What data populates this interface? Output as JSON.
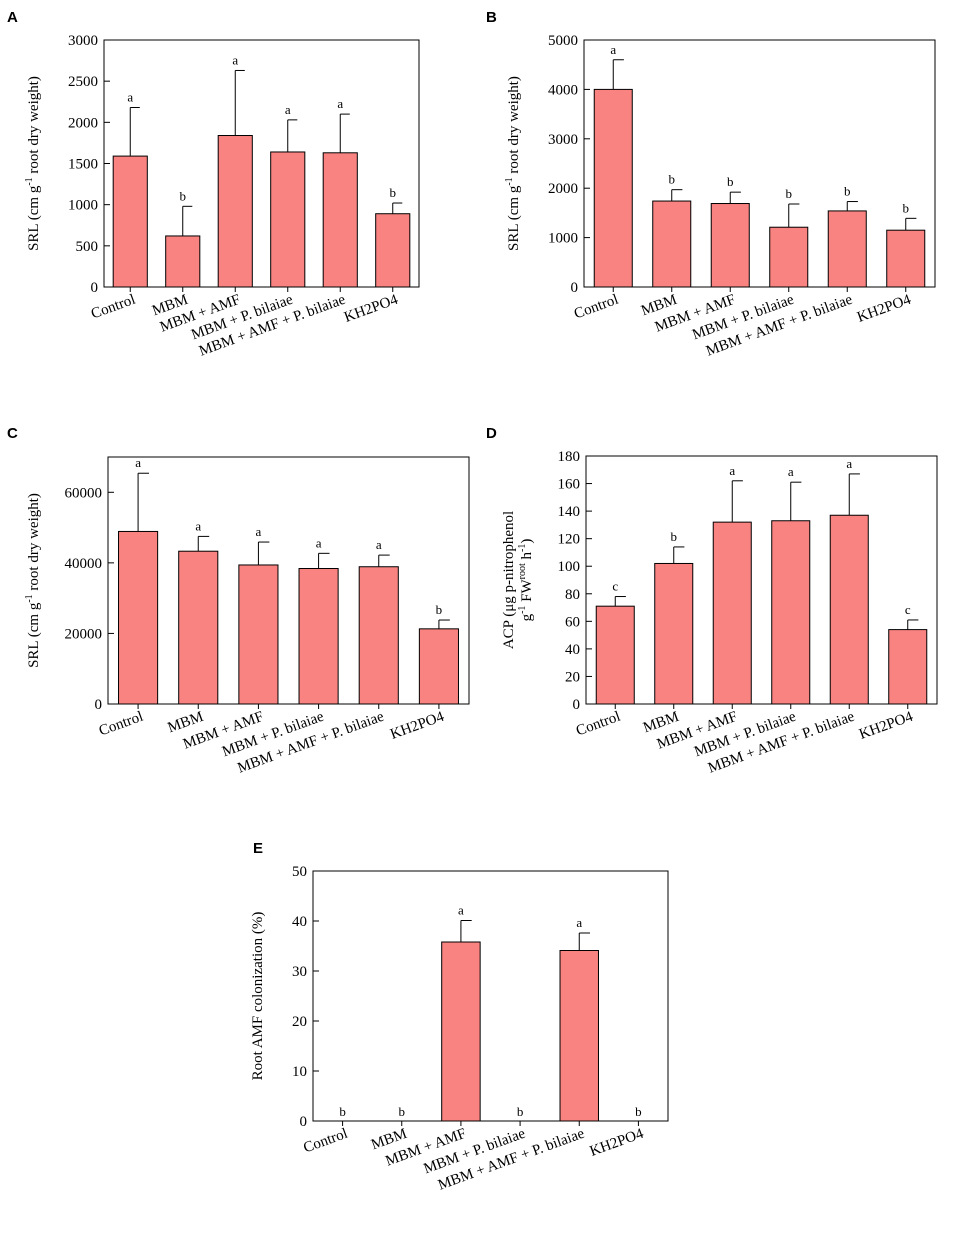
{
  "colors": {
    "bar": "#f88380",
    "axis": "#000000"
  },
  "chart_data": [
    {
      "panel": "A",
      "type": "bar",
      "categories": [
        "Control",
        "MBM",
        "MBM + AMF",
        "MBM + P. bilaiae",
        "MBM + AMF + P. bilaiae",
        "KH2PO4"
      ],
      "values": [
        1590,
        620,
        1840,
        1640,
        1630,
        890
      ],
      "errors": [
        590,
        360,
        790,
        390,
        470,
        130
      ],
      "significance": [
        "a",
        "b",
        "a",
        "a",
        "a",
        "b"
      ],
      "ylim": [
        0,
        3000
      ],
      "yticks": [
        0,
        500,
        1000,
        1500,
        2000,
        2500,
        3000
      ],
      "ytick_labels": [
        "0",
        "500",
        "1000",
        "1500",
        "2000",
        "2500",
        "3000"
      ],
      "ylabel_parts": [
        "SRL (cm g",
        "-1",
        " root dry weight)"
      ],
      "xlabel": ""
    },
    {
      "panel": "B",
      "type": "bar",
      "categories": [
        "Control",
        "MBM",
        "MBM + AMF",
        "MBM + P. bilaiae",
        "MBM + AMF + P. bilaiae",
        "KH2PO4"
      ],
      "values": [
        4000,
        1740,
        1690,
        1210,
        1540,
        1150
      ],
      "errors": [
        600,
        230,
        230,
        470,
        190,
        240
      ],
      "significance": [
        "a",
        "b",
        "b",
        "b",
        "b",
        "b"
      ],
      "ylim": [
        0,
        5000
      ],
      "yticks": [
        0,
        1000,
        2000,
        3000,
        4000,
        5000
      ],
      "ytick_labels": [
        "0",
        "1000",
        "2000",
        "3000",
        "4000",
        "5000"
      ],
      "ylabel_parts": [
        "SRL (cm g",
        "-1",
        " root dry weight)"
      ],
      "xlabel": ""
    },
    {
      "panel": "C",
      "type": "bar",
      "categories": [
        "Control",
        "MBM",
        "MBM + AMF",
        "MBM + P. bilaiae",
        "MBM + AMF + P. bilaiae",
        "KH2PO4"
      ],
      "values": [
        48900,
        43300,
        39400,
        38400,
        38900,
        21300
      ],
      "errors": [
        16500,
        4200,
        6500,
        4300,
        3300,
        2500
      ],
      "significance": [
        "a",
        "a",
        "a",
        "a",
        "a",
        "b"
      ],
      "ylim": [
        0,
        70000
      ],
      "yticks": [
        0,
        20000,
        40000,
        60000
      ],
      "ytick_labels": [
        "0",
        "20000",
        "40000",
        "60000"
      ],
      "ylabel_parts": [
        "SRL (cm g",
        "-1",
        " root dry weight)"
      ],
      "xlabel": ""
    },
    {
      "panel": "D",
      "type": "bar",
      "categories": [
        "Control",
        "MBM",
        "MBM + AMF",
        "MBM + P. bilaiae",
        "MBM + AMF + P. bilaiae",
        "KH2PO4"
      ],
      "values": [
        71,
        102,
        132,
        133,
        137,
        54
      ],
      "errors": [
        7,
        12,
        30,
        28,
        30,
        7
      ],
      "significance": [
        "c",
        "b",
        "a",
        "a",
        "a",
        "c"
      ],
      "ylim": [
        0,
        180
      ],
      "yticks": [
        0,
        20,
        40,
        60,
        80,
        100,
        120,
        140,
        160,
        180
      ],
      "ytick_labels": [
        "0",
        "20",
        "40",
        "60",
        "80",
        "100",
        "120",
        "140",
        "160",
        "180"
      ],
      "ylabel_line1": "ACP (μg p-nitrophenol",
      "ylabel_line2_parts": [
        "g",
        "-1",
        " FW",
        "root",
        " h",
        "-1",
        ")"
      ],
      "xlabel": ""
    },
    {
      "panel": "E",
      "type": "bar",
      "categories": [
        "Control",
        "MBM",
        "MBM + AMF",
        "MBM + P. bilaiae",
        "MBM + AMF + P. bilaiae",
        "KH2PO4"
      ],
      "values": [
        0,
        0,
        35.8,
        0,
        34.1,
        0
      ],
      "errors": [
        0,
        0,
        4.3,
        0,
        3.5,
        0
      ],
      "significance": [
        "b",
        "b",
        "a",
        "b",
        "a",
        "b"
      ],
      "ylim": [
        0,
        50
      ],
      "yticks": [
        0,
        10,
        20,
        30,
        40,
        50
      ],
      "ytick_labels": [
        "0",
        "10",
        "20",
        "30",
        "40",
        "50"
      ],
      "ylabel": "Root AMF colonization (%)",
      "xlabel": ""
    }
  ]
}
